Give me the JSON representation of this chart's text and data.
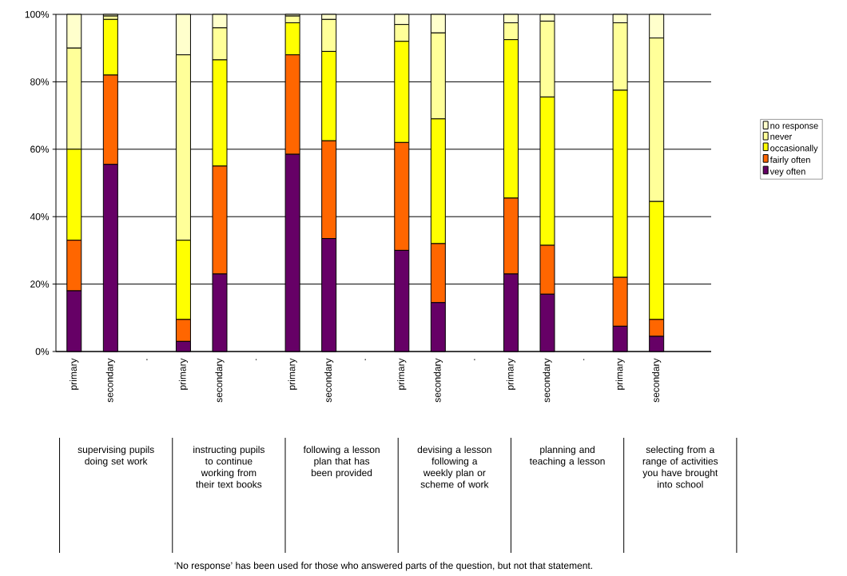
{
  "chart_data": {
    "type": "bar",
    "stacked": true,
    "categories": [
      "primary",
      "secondary",
      ".",
      "primary",
      "secondary",
      ".",
      "primary",
      "secondary",
      ".",
      "primary",
      "secondary",
      ".",
      "primary",
      "secondary",
      ".",
      "primary",
      "secondary",
      null
    ],
    "series": [
      {
        "name": "vey often",
        "color": "#660066",
        "values": [
          18,
          55.5,
          null,
          3,
          23,
          null,
          58.5,
          33.5,
          null,
          30,
          14.5,
          null,
          23,
          17,
          null,
          7.5,
          4.5,
          null
        ]
      },
      {
        "name": "fairly often",
        "color": "#ff6600",
        "values": [
          15,
          26.5,
          null,
          6.5,
          32,
          null,
          29.5,
          29,
          null,
          32,
          17.5,
          null,
          22.5,
          14.5,
          null,
          14.5,
          5,
          null
        ]
      },
      {
        "name": "occasionally",
        "color": "#ffff00",
        "values": [
          27,
          16.5,
          null,
          23.5,
          31.5,
          null,
          9.5,
          26.5,
          null,
          30,
          37,
          null,
          47,
          44,
          null,
          55.5,
          35,
          null
        ]
      },
      {
        "name": "never",
        "color": "#ffff99",
        "values": [
          30,
          1,
          null,
          55,
          9.5,
          null,
          2,
          9.5,
          null,
          5,
          25.5,
          null,
          5,
          22.5,
          null,
          20,
          48.5,
          null
        ]
      },
      {
        "name": "no response",
        "color": "#ffffcc",
        "values": [
          10,
          0.5,
          null,
          12,
          4,
          null,
          0.5,
          1.5,
          null,
          3,
          5.5,
          null,
          2.5,
          2,
          null,
          2.5,
          7,
          null
        ]
      }
    ],
    "ylim": [
      0,
      100
    ],
    "yticks": [
      {
        "value": 0,
        "label": "0%"
      },
      {
        "value": 20,
        "label": "20%"
      },
      {
        "value": 40,
        "label": "40%"
      },
      {
        "value": 60,
        "label": "60%"
      },
      {
        "value": 80,
        "label": "80%"
      },
      {
        "value": 100,
        "label": "100%"
      }
    ],
    "grid": "y",
    "legend": "right",
    "annotations": [
      "supervising pupils doing set work",
      "instructing pupils to continue working from their text books",
      "following a lesson plan that has been provided",
      "devising a lesson following a weekly plan or scheme of work",
      "planning and teaching a lesson",
      "selecting from a range of activities you have brought into school",
      "‘No response’ has been used for those who answered parts of the question, but not that statement."
    ]
  }
}
